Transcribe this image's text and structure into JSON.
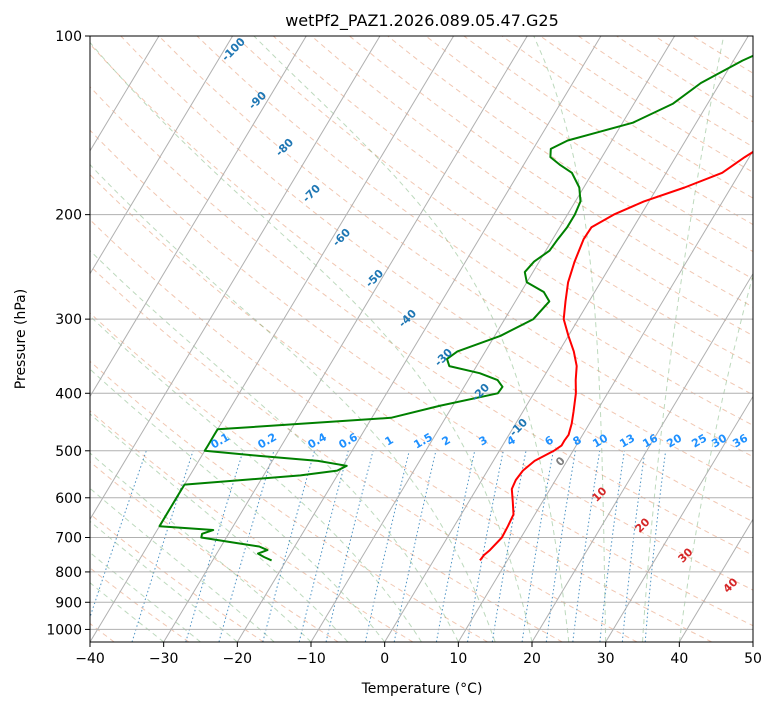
{
  "chart_data": {
    "type": "line",
    "title": "wetPf2_PAZ1.2026.089.05.47.G25",
    "xlabel": "Temperature (°C)",
    "ylabel": "Pressure (hPa)",
    "xlim": [
      -40,
      50
    ],
    "ylim": [
      1050,
      100
    ],
    "y_scale": "log",
    "grid": true,
    "x_ticks": [
      -40,
      -30,
      -20,
      -10,
      0,
      10,
      20,
      30,
      40,
      50
    ],
    "y_ticks": [
      100,
      200,
      300,
      400,
      500,
      600,
      700,
      800,
      900,
      1000
    ],
    "dry_adiabat_labels": [
      "-100",
      "-90",
      "-80",
      "-70",
      "-60",
      "-50",
      "-40",
      "-30",
      "-20",
      "-10"
    ],
    "mixing_ratio_labels": [
      "0.1",
      "0.2",
      "0.4",
      "0.6",
      "1",
      "1.5",
      "2",
      "3",
      "4",
      "6",
      "8",
      "10",
      "13",
      "16",
      "20",
      "25",
      "30",
      "36"
    ],
    "moist_adiabat_labels": [
      "0",
      "10",
      "20",
      "30",
      "40"
    ],
    "series": [
      {
        "color": "#ff0000",
        "p": [
          765,
          750,
          735,
          700,
          670,
          640,
          610,
          580,
          560,
          540,
          520,
          500,
          490,
          480,
          470,
          450,
          430,
          400,
          380,
          360,
          340,
          320,
          300,
          280,
          260,
          240,
          220,
          210,
          200,
          190,
          180,
          170,
          160,
          150,
          145,
          140,
          130,
          120,
          110,
          100
        ],
        "t": [
          6.3,
          6.4,
          6.8,
          7.4,
          7.3,
          7.1,
          6.0,
          4.8,
          4.6,
          4.8,
          5.6,
          7.4,
          8.0,
          8.0,
          8.1,
          7.6,
          6.9,
          5.7,
          4.6,
          3.6,
          2.0,
          0.0,
          -2.0,
          -3.2,
          -4.4,
          -5.2,
          -5.8,
          -5.7,
          -3.7,
          -0.7,
          3.7,
          7.6,
          9.4,
          11.6,
          12.6,
          13.4,
          15.0,
          17.3,
          19.2,
          24.8
        ]
      },
      {
        "color": "#008000",
        "p": [
          765,
          755,
          745,
          735,
          725,
          715,
          700,
          690,
          680,
          670,
          630,
          600,
          580,
          570,
          560,
          550,
          540,
          530,
          520,
          510,
          500,
          490,
          470,
          460,
          440,
          420,
          400,
          390,
          380,
          370,
          360,
          350,
          340,
          320,
          300,
          280,
          270,
          260,
          250,
          240,
          230,
          220,
          210,
          200,
          190,
          180,
          170,
          165,
          160,
          155,
          150,
          145,
          140,
          130,
          120,
          110,
          100
        ],
        "t": [
          -22.0,
          -23.3,
          -24.4,
          -23.4,
          -24.8,
          -28.2,
          -33.4,
          -33.6,
          -32.4,
          -40,
          -40,
          -40,
          -40,
          -40,
          -32.5,
          -25,
          -20.4,
          -19.5,
          -23.8,
          -32.2,
          -40,
          -40,
          -40,
          -40,
          -17.4,
          -11.8,
          -4.9,
          -4.8,
          -6.0,
          -9.0,
          -13.7,
          -14.6,
          -13.8,
          -9.2,
          -6.1,
          -5.4,
          -6.9,
          -10.0,
          -11.1,
          -10.7,
          -9.5,
          -9.3,
          -9.0,
          -9.0,
          -9.3,
          -10.6,
          -12.8,
          -15.0,
          -17.0,
          -17.6,
          -16.0,
          -12.4,
          -8.6,
          -4.7,
          -2.6,
          1.2,
          6.6
        ]
      }
    ]
  }
}
